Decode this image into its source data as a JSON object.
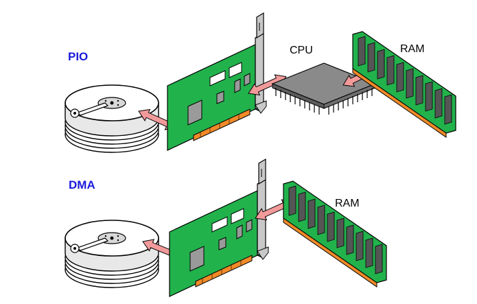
{
  "labels": {
    "pio": "PIO",
    "dma": "DMA",
    "cpu": "CPU",
    "ram_top": "RAM",
    "ram_bottom": "RAM"
  },
  "colors": {
    "mode_label": "#1a1adc",
    "card_green": "#22b24c",
    "chip_gray": "#8a8a8a",
    "arrow_pink": "#f29a9a",
    "contact_orange": "#f08a28",
    "ram_dark": "#444444"
  },
  "icons": [
    "hard-disk-icon",
    "expansion-card-icon",
    "cpu-chip-icon",
    "ram-module-icon",
    "double-arrow-icon"
  ]
}
